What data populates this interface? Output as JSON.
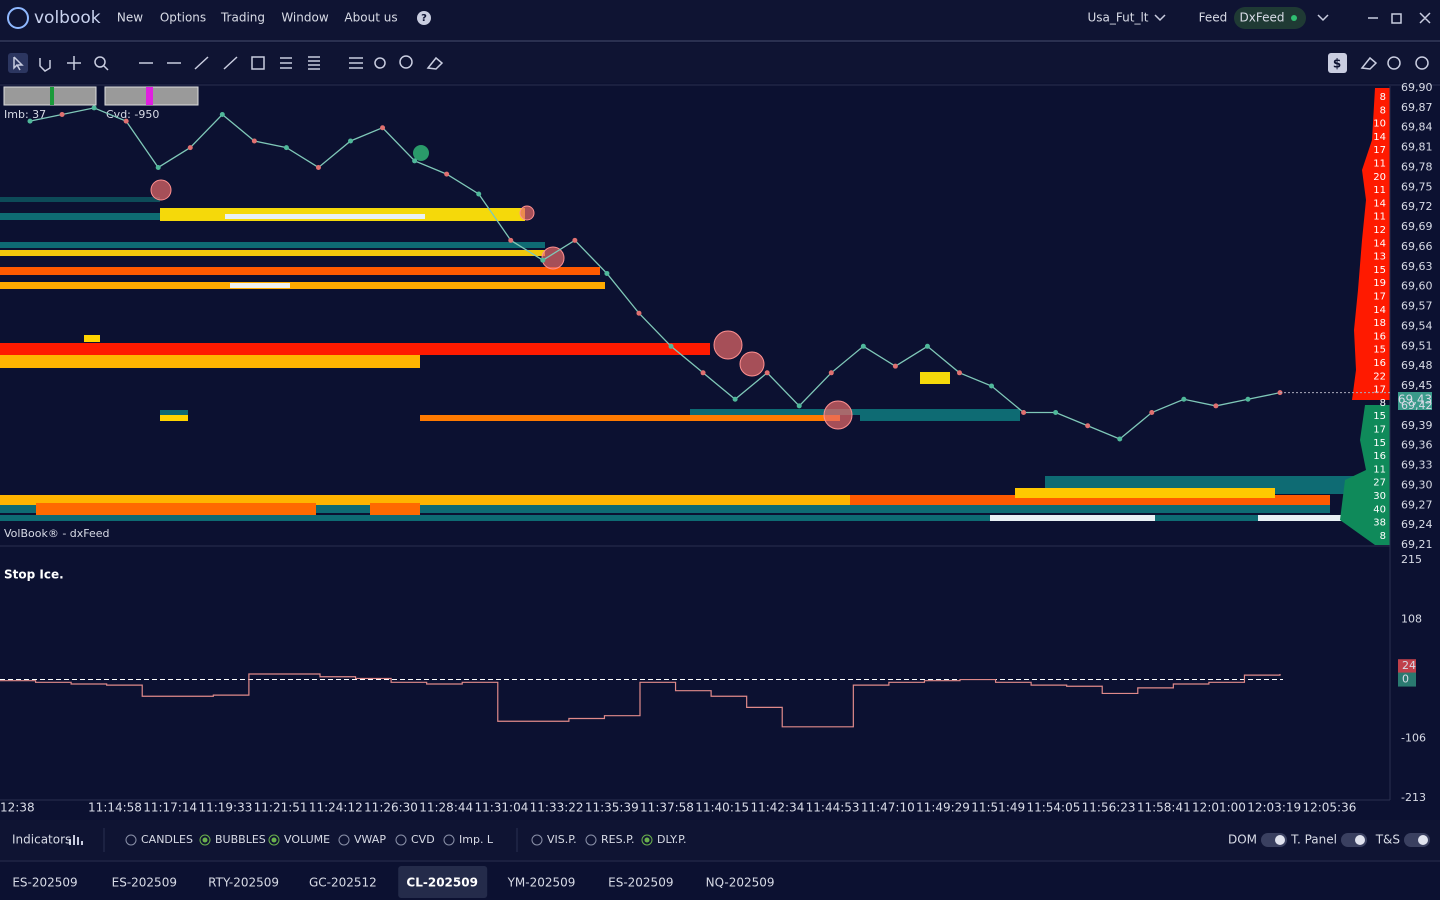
{
  "header": {
    "logo": "volbook",
    "menu": [
      "New",
      "Options",
      "Trading",
      "Window",
      "About us",
      "?"
    ],
    "account": "Usa_Fut_lt",
    "feed_label": "Feed",
    "feed": "DxFeed"
  },
  "main_chart": {
    "imb": "Imb: 37",
    "cvd": "Cvd: -950",
    "watermark": "VolBook® - dxFeed",
    "price_labels": [
      "69,90",
      "69,87",
      "69,84",
      "69,81",
      "69,78",
      "69,75",
      "69,72",
      "69,69",
      "69,66",
      "69,63",
      "69,60",
      "69,57",
      "69,54",
      "69,51",
      "69,48",
      "69,45",
      "69,42",
      "69,39",
      "69,36",
      "69,33",
      "69,30",
      "69,27",
      "69,24",
      "69,21"
    ],
    "ylim": [
      69.21,
      69.9
    ],
    "current_price": "69,43",
    "profile": [
      "8",
      "8",
      "10",
      "14",
      "17",
      "11",
      "20",
      "11",
      "14",
      "11",
      "12",
      "14",
      "13",
      "15",
      "19",
      "17",
      "14",
      "18",
      "16",
      "15",
      "16",
      "22",
      "17",
      "8",
      "15",
      "17",
      "15",
      "16",
      "11",
      "27",
      "30",
      "40",
      "38",
      "8"
    ],
    "price_line": [
      69.85,
      69.86,
      69.87,
      69.85,
      69.78,
      69.81,
      69.86,
      69.82,
      69.81,
      69.78,
      69.82,
      69.84,
      69.79,
      69.77,
      69.74,
      69.67,
      69.64,
      69.67,
      69.62,
      69.56,
      69.51,
      69.47,
      69.43,
      69.47,
      69.42,
      69.47,
      69.51,
      69.48,
      69.51,
      69.47,
      69.45,
      69.41,
      69.41,
      69.39,
      69.37,
      69.41,
      69.43,
      69.42,
      69.43,
      69.44
    ]
  },
  "indicator": {
    "title": "Stop Ice.",
    "ylim": [
      -213,
      215
    ],
    "yticks": [
      215,
      108,
      -106,
      -213
    ],
    "markers": [
      {
        "value": 24,
        "label": "24"
      },
      {
        "value": 0,
        "label": "0"
      }
    ],
    "values": [
      -2,
      -5,
      -8,
      -10,
      -30,
      -30,
      -28,
      10,
      10,
      5,
      2,
      -5,
      -8,
      -5,
      -75,
      -75,
      -70,
      -65,
      -5,
      -20,
      -30,
      -50,
      -85,
      -85,
      -10,
      -5,
      -2,
      0,
      -5,
      -10,
      -12,
      -25,
      -15,
      -8,
      -5,
      8,
      10
    ]
  },
  "time_axis": [
    "12:38",
    "11:14:58",
    "11:17:14",
    "11:19:33",
    "11:21:51",
    "11:24:12",
    "11:26:30",
    "11:28:44",
    "11:31:04",
    "11:33:22",
    "11:35:39",
    "11:37:58",
    "11:40:15",
    "11:42:34",
    "11:44:53",
    "11:47:10",
    "11:49:29",
    "11:51:49",
    "11:54:05",
    "11:56:23",
    "11:58:41",
    "12:01:00",
    "12:03:19",
    "12:05:36"
  ],
  "footer": {
    "indicators": "Indicators",
    "toggles": [
      {
        "label": "CANDLES",
        "on": false
      },
      {
        "label": "BUBBLES",
        "on": true
      },
      {
        "label": "VOLUME",
        "on": true
      },
      {
        "label": "VWAP",
        "on": false
      },
      {
        "label": "CVD",
        "on": false
      },
      {
        "label": "Imp. L",
        "on": false
      },
      {
        "label": "VIS.P.",
        "on": false
      },
      {
        "label": "RES.P.",
        "on": false
      },
      {
        "label": "DLY.P.",
        "on": true
      }
    ],
    "switches": [
      "DOM",
      "T. Panel",
      "T&S"
    ]
  },
  "tabs": [
    "ES-202509",
    "ES-202509",
    "RTY-202509",
    "GC-202512",
    "CL-202509",
    "YM-202509",
    "ES-202509",
    "NQ-202509"
  ],
  "active_tab": 4
}
